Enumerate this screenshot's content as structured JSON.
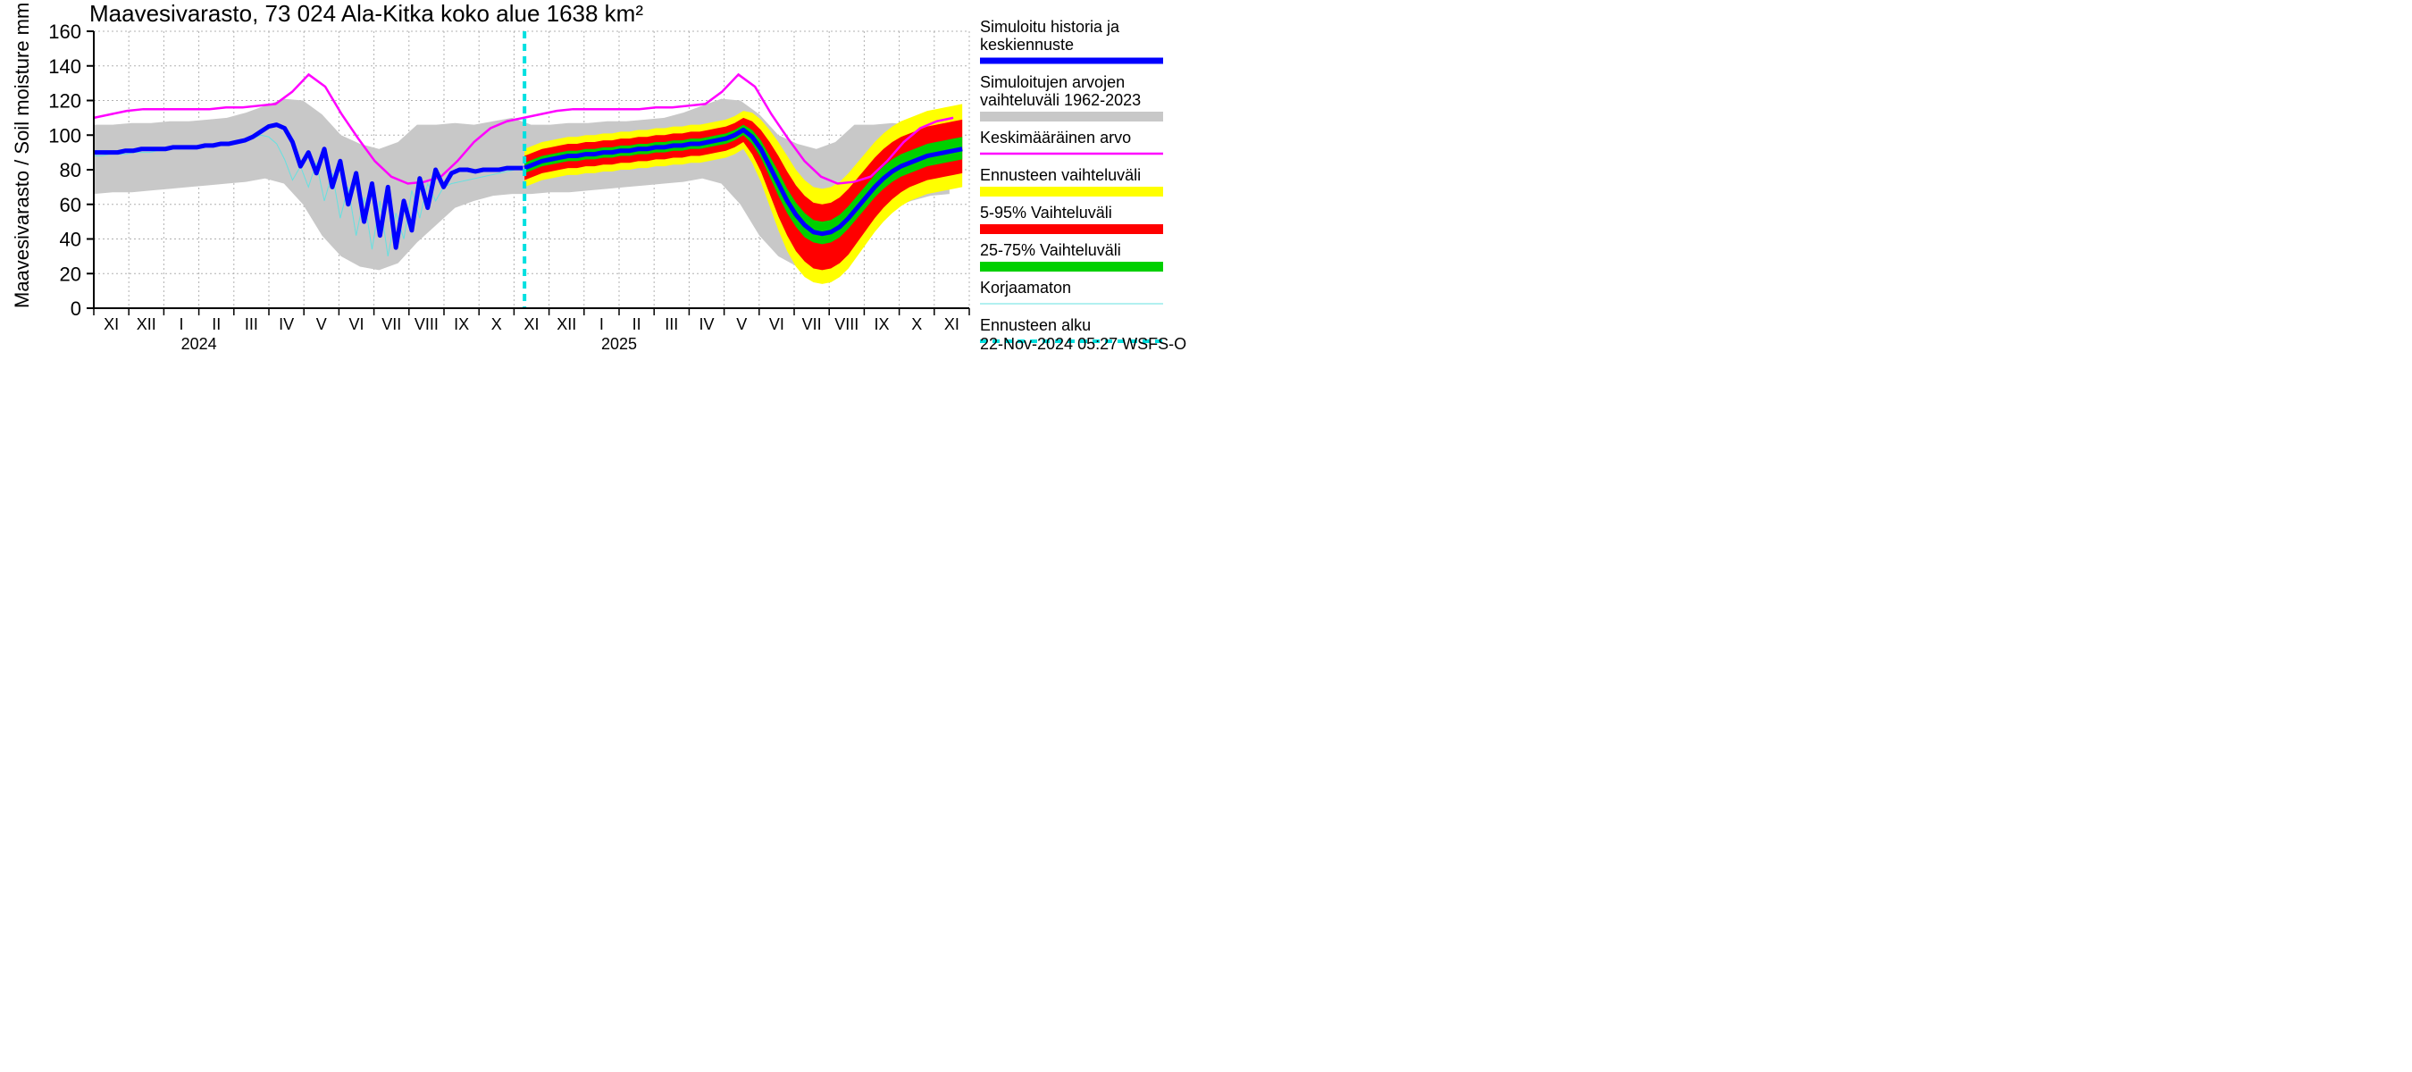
{
  "chart": {
    "type": "timeseries-band",
    "title": "Maavesivarasto, 73 024 Ala-Kitka koko alue 1638 km²",
    "ylabel": "Maavesivarasto / Soil moisture    mm",
    "footer": "22-Nov-2024 05:27 WSFS-O",
    "ylim": [
      0,
      160
    ],
    "ytick_step": 20,
    "yticks": [
      0,
      20,
      40,
      60,
      80,
      100,
      120,
      140,
      160
    ],
    "plot_bg": "#ffffff",
    "grid_color": "#b0b0b0",
    "grid_dash": "2,3",
    "axis_color": "#000000",
    "title_fontsize": 26,
    "label_fontsize": 22,
    "tick_fontsize": 22,
    "month_fontsize": 18,
    "year_labels": [
      {
        "text": "2024",
        "month_index": 3
      },
      {
        "text": "2025",
        "month_index": 15
      }
    ],
    "months": [
      "XI",
      "XII",
      "I",
      "II",
      "III",
      "IV",
      "V",
      "VI",
      "VII",
      "VIII",
      "IX",
      "X",
      "XI",
      "XII",
      "I",
      "II",
      "III",
      "IV",
      "V",
      "VI",
      "VII",
      "VIII",
      "IX",
      "X",
      "XI"
    ],
    "n_months": 25,
    "forecast_start_index": 12.3,
    "colors": {
      "hist_band": "#c8c8c8",
      "mean_line": "#ff00ff",
      "sim_line": "#0000ff",
      "uncorrected": "#66e0e0",
      "forecast_outer": "#ffff00",
      "forecast_5_95": "#ff0000",
      "forecast_25_75": "#00d000",
      "forecast_start": "#00e0e0",
      "hist_edge": "#c8c8c8"
    },
    "legend": [
      {
        "label1": "Simuloitu historia ja",
        "label2": "keskiennuste",
        "swatch": "#0000ff",
        "type": "thickline"
      },
      {
        "label1": "Simuloitujen arvojen",
        "label2": "vaihteluväli 1962-2023",
        "swatch": "#c8c8c8",
        "type": "band"
      },
      {
        "label1": "Keskimääräinen arvo",
        "label2": "",
        "swatch": "#ff00ff",
        "type": "line"
      },
      {
        "label1": "Ennusteen vaihteluväli",
        "label2": "",
        "swatch": "#ffff00",
        "type": "band"
      },
      {
        "label1": "5-95% Vaihteluväli",
        "label2": "",
        "swatch": "#ff0000",
        "type": "band"
      },
      {
        "label1": "25-75% Vaihteluväli",
        "label2": "",
        "swatch": "#00d000",
        "type": "band"
      },
      {
        "label1": "Korjaamaton",
        "label2": "",
        "swatch": "#66e0e0",
        "type": "thinline"
      },
      {
        "label1": "Ennusteen alku",
        "label2": "",
        "swatch": "#00e0e0",
        "type": "dashline"
      }
    ],
    "hist_band": {
      "upper": [
        106,
        106,
        107,
        107,
        108,
        108,
        109,
        110,
        113,
        117,
        121,
        120,
        112,
        100,
        95,
        92,
        96,
        106,
        106,
        107,
        106,
        108,
        110,
        106,
        106,
        107,
        107,
        108,
        108,
        109,
        110,
        113,
        117,
        121,
        120,
        112,
        100,
        95,
        92,
        96,
        106,
        106,
        107,
        106,
        108,
        110
      ],
      "lower": [
        66,
        67,
        67,
        68,
        69,
        70,
        71,
        72,
        73,
        75,
        72,
        60,
        42,
        30,
        24,
        22,
        26,
        38,
        48,
        58,
        62,
        65,
        66,
        66,
        67,
        67,
        68,
        69,
        70,
        71,
        72,
        73,
        75,
        72,
        60,
        42,
        30,
        24,
        22,
        26,
        38,
        48,
        58,
        62,
        65,
        66
      ],
      "x_step": 0.543
    },
    "mean_line": {
      "y": [
        110,
        112,
        114,
        115,
        115,
        115,
        115,
        115,
        116,
        116,
        117,
        118,
        125,
        135,
        128,
        112,
        98,
        85,
        76,
        72,
        73,
        76,
        85,
        96,
        104,
        108,
        110,
        112,
        114,
        115,
        115,
        115,
        115,
        115,
        116,
        116,
        117,
        118,
        125,
        135,
        128,
        112,
        98,
        85,
        76,
        72,
        73,
        76,
        85,
        96,
        104,
        108,
        110
      ],
      "x_step": 0.472
    },
    "sim_line": {
      "y": [
        90,
        90,
        90,
        90,
        91,
        91,
        92,
        92,
        92,
        92,
        93,
        93,
        93,
        93,
        94,
        94,
        95,
        95,
        96,
        97,
        99,
        102,
        105,
        106,
        104,
        96,
        82,
        90,
        78,
        92,
        70,
        85,
        60,
        78,
        50,
        72,
        42,
        70,
        35,
        62,
        45,
        75,
        58,
        80,
        70,
        78,
        80,
        80,
        79,
        80,
        80,
        80,
        81,
        81,
        81
      ],
      "x_step": 0.227,
      "end_index": 12.3
    },
    "uncorrected_line": {
      "y": [
        88,
        88,
        89,
        89,
        89,
        90,
        90,
        90,
        91,
        91,
        92,
        92,
        93,
        93,
        94,
        94,
        95,
        95,
        96,
        97,
        98,
        100,
        99,
        95,
        86,
        74,
        82,
        70,
        84,
        62,
        78,
        52,
        70,
        42,
        64,
        34,
        62,
        30,
        55,
        40,
        68,
        52,
        72,
        62,
        70,
        72,
        73,
        74,
        75,
        76,
        77,
        78,
        79,
        80,
        80
      ],
      "x_step": 0.227,
      "end_index": 12.3
    },
    "forecast": {
      "x_start": 12.3,
      "x_step": 0.25,
      "median": [
        81,
        83,
        85,
        86,
        87,
        88,
        88,
        89,
        89,
        90,
        90,
        91,
        91,
        92,
        92,
        93,
        93,
        94,
        94,
        95,
        95,
        96,
        97,
        98,
        100,
        103,
        99,
        92,
        82,
        72,
        62,
        54,
        48,
        44,
        43,
        44,
        47,
        52,
        58,
        64,
        70,
        75,
        79,
        82,
        84,
        86,
        88,
        89,
        90,
        91,
        92
      ],
      "p25": [
        78,
        80,
        82,
        83,
        84,
        85,
        85,
        86,
        86,
        87,
        87,
        88,
        88,
        89,
        89,
        90,
        90,
        91,
        91,
        92,
        92,
        93,
        94,
        95,
        97,
        100,
        95,
        87,
        76,
        65,
        55,
        47,
        41,
        38,
        37,
        38,
        41,
        46,
        52,
        58,
        64,
        69,
        73,
        76,
        78,
        80,
        82,
        83,
        84,
        85,
        86
      ],
      "p75": [
        84,
        86,
        88,
        89,
        90,
        91,
        91,
        92,
        92,
        93,
        93,
        94,
        94,
        95,
        95,
        96,
        96,
        97,
        97,
        98,
        98,
        99,
        100,
        101,
        103,
        106,
        103,
        97,
        88,
        79,
        69,
        61,
        55,
        51,
        50,
        51,
        54,
        59,
        65,
        71,
        77,
        82,
        86,
        89,
        91,
        93,
        95,
        96,
        97,
        98,
        99
      ],
      "p5": [
        74,
        76,
        78,
        79,
        80,
        81,
        81,
        82,
        82,
        83,
        83,
        84,
        84,
        85,
        85,
        86,
        86,
        87,
        87,
        88,
        88,
        89,
        90,
        91,
        93,
        96,
        89,
        79,
        66,
        53,
        42,
        33,
        27,
        23,
        22,
        23,
        26,
        31,
        38,
        45,
        52,
        58,
        63,
        67,
        70,
        72,
        74,
        75,
        76,
        77,
        78
      ],
      "p95": [
        88,
        90,
        92,
        93,
        94,
        95,
        95,
        96,
        96,
        97,
        97,
        98,
        98,
        99,
        99,
        100,
        100,
        101,
        101,
        102,
        102,
        103,
        104,
        105,
        107,
        110,
        108,
        103,
        96,
        88,
        79,
        71,
        65,
        61,
        60,
        61,
        64,
        69,
        75,
        81,
        87,
        92,
        96,
        99,
        101,
        103,
        105,
        106,
        107,
        108,
        109
      ],
      "outer_lo": [
        70,
        72,
        74,
        75,
        76,
        77,
        77,
        78,
        78,
        79,
        79,
        80,
        80,
        81,
        81,
        82,
        82,
        83,
        83,
        84,
        84,
        85,
        86,
        87,
        89,
        92,
        84,
        73,
        59,
        45,
        33,
        24,
        18,
        15,
        14,
        15,
        18,
        23,
        30,
        37,
        44,
        50,
        55,
        59,
        62,
        64,
        66,
        67,
        68,
        69,
        70
      ],
      "outer_hi": [
        92,
        94,
        96,
        97,
        98,
        99,
        99,
        100,
        100,
        101,
        101,
        102,
        102,
        103,
        103,
        104,
        104,
        105,
        105,
        106,
        106,
        107,
        108,
        109,
        111,
        114,
        113,
        109,
        103,
        96,
        88,
        80,
        74,
        70,
        69,
        70,
        73,
        78,
        84,
        90,
        96,
        101,
        105,
        108,
        110,
        112,
        114,
        115,
        116,
        117,
        118
      ]
    }
  }
}
